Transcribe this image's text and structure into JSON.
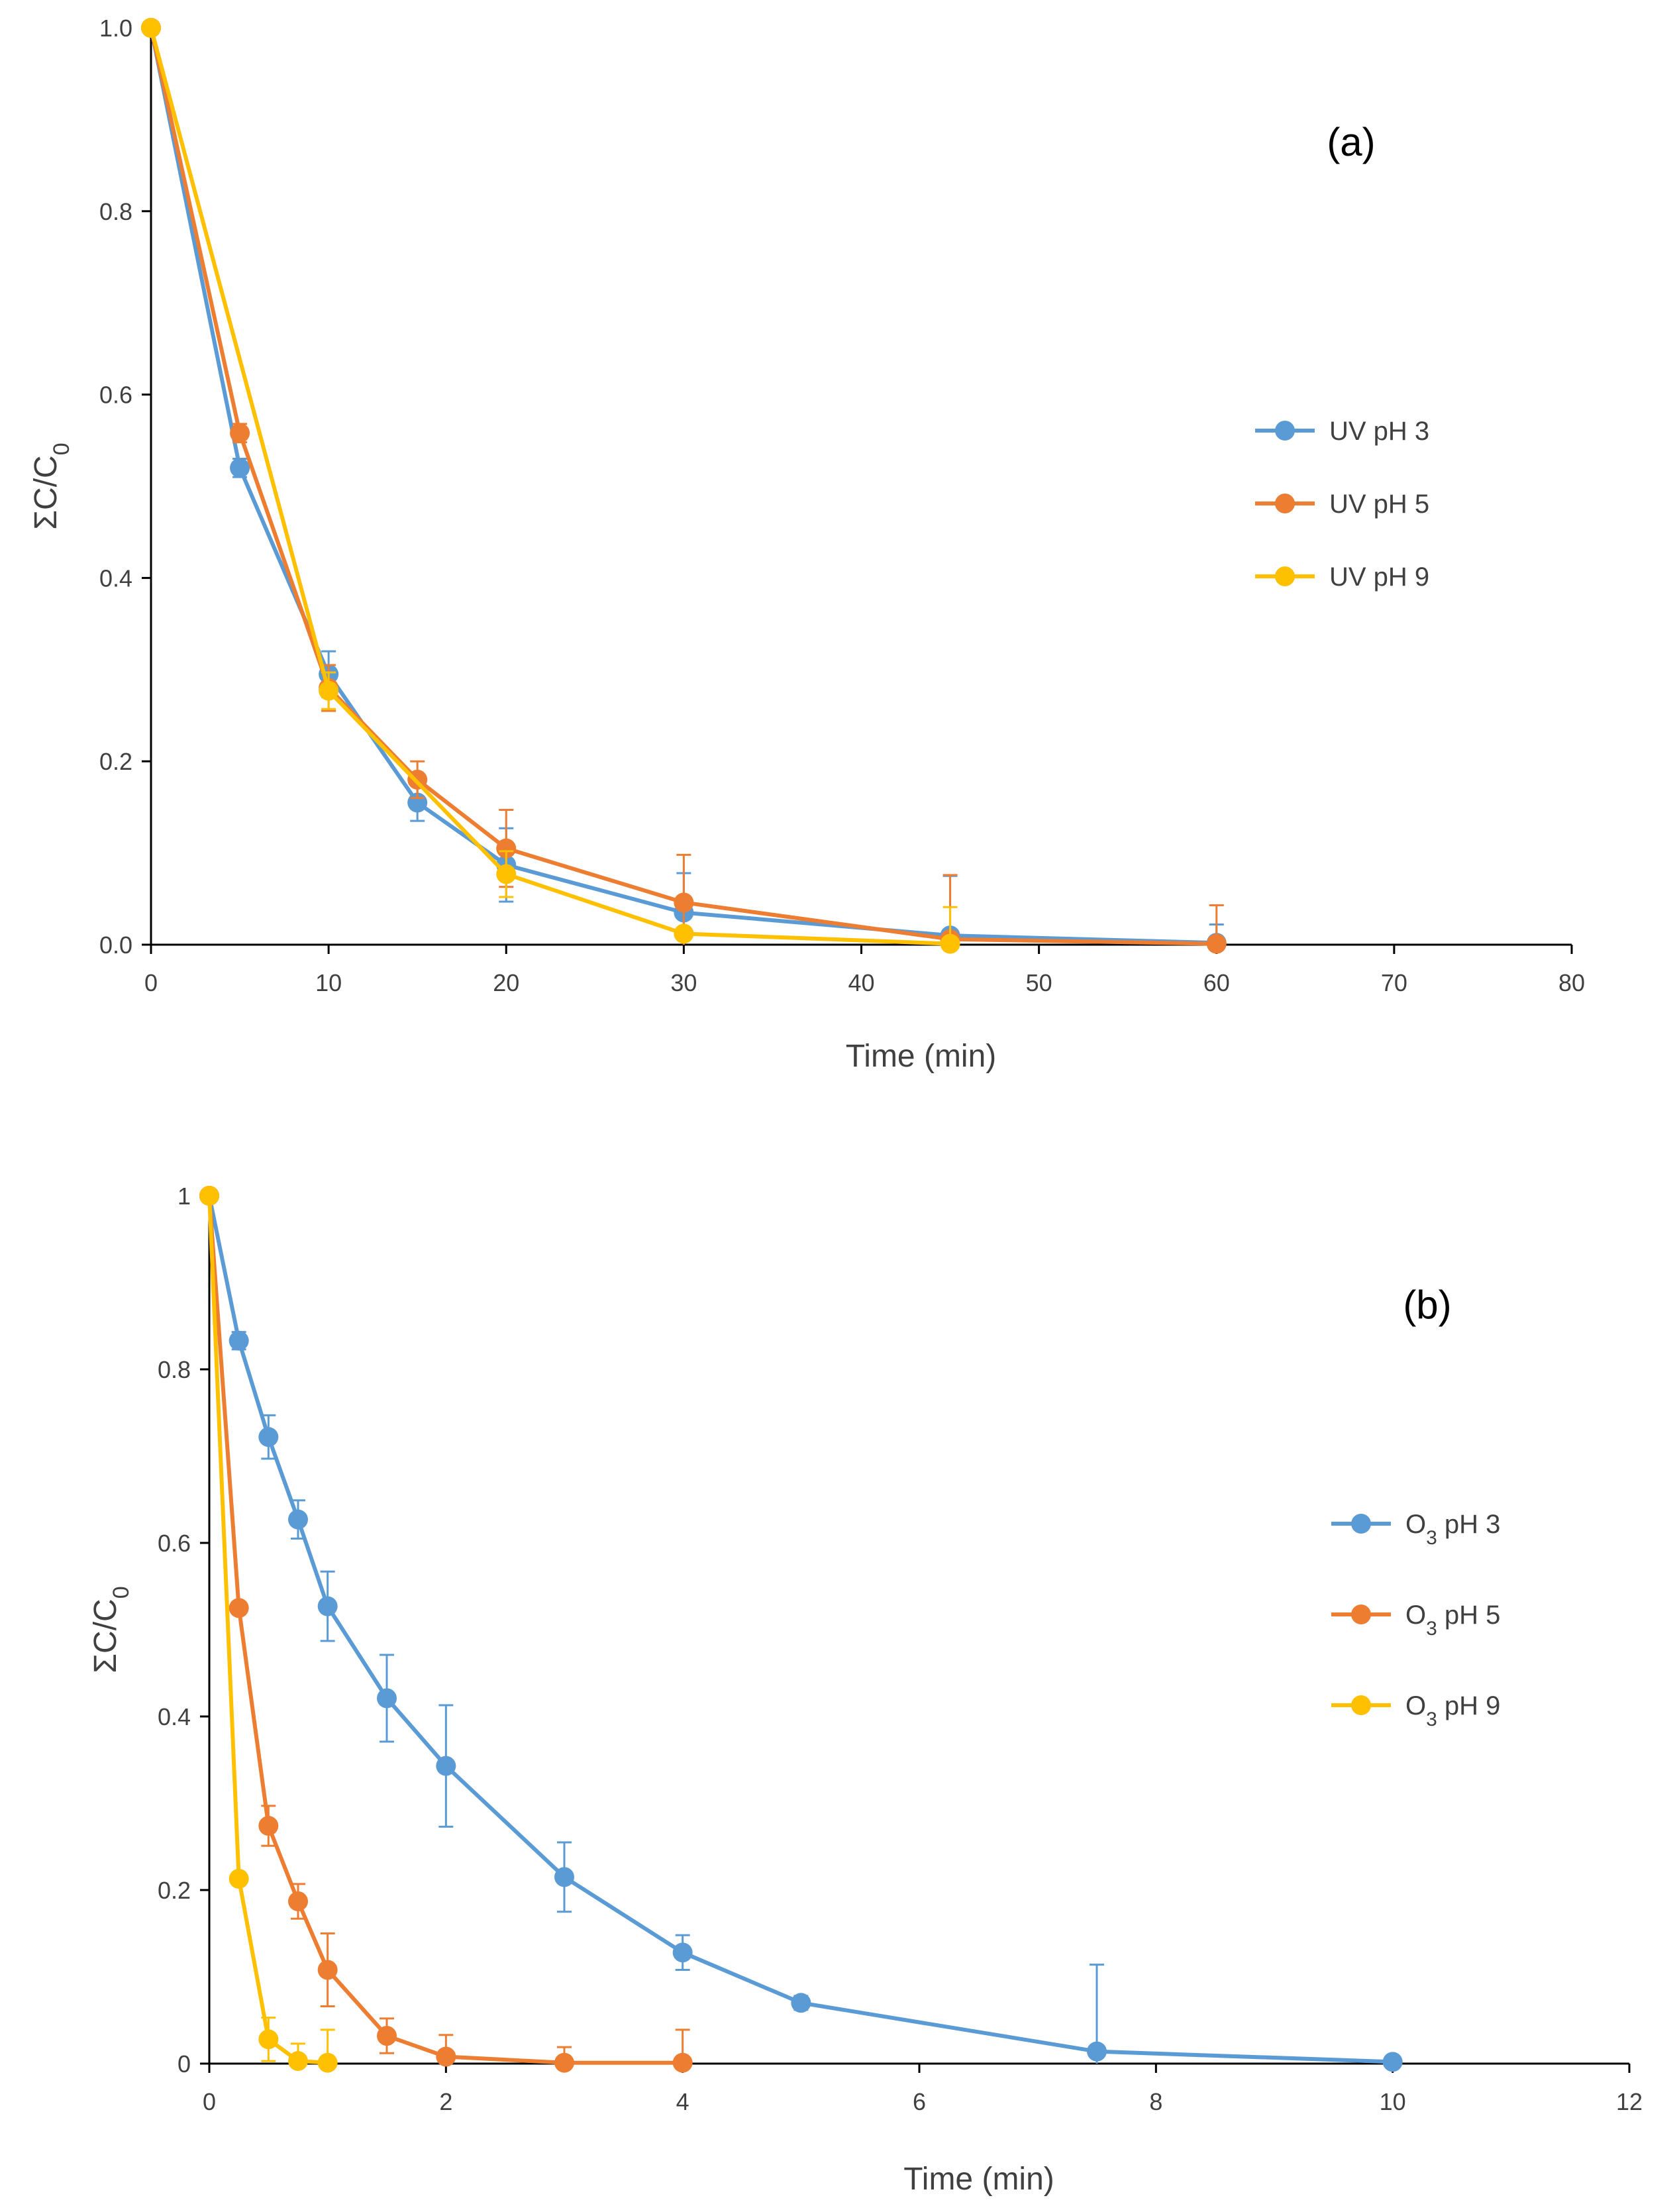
{
  "colors": {
    "pH3": "#5B9BD5",
    "pH5": "#ED7D31",
    "pH9": "#FFC000",
    "axis": "#000000",
    "text": "#404040"
  },
  "chart_data": [
    {
      "type": "line",
      "panel_label": "(a)",
      "xlabel": "Time (min)",
      "ylabel_main": "ΣC/C",
      "ylabel_sub": "0",
      "xlim": [
        0,
        80
      ],
      "ylim": [
        0,
        1
      ],
      "x_ticks": [
        0,
        10,
        20,
        30,
        40,
        50,
        60,
        70,
        80
      ],
      "x_tick_labels": [
        "0",
        "10",
        "20",
        "30",
        "40",
        "50",
        "60",
        "70",
        "80"
      ],
      "y_ticks": [
        0,
        0.2,
        0.4,
        0.6,
        0.8,
        1.0
      ],
      "y_tick_labels": [
        "0.0",
        "0.2",
        "0.4",
        "0.6",
        "0.8",
        "1.0"
      ],
      "grid": false,
      "legend_position": "right",
      "series": [
        {
          "name_main": "UV pH 3",
          "name_sub": "",
          "name_tail": "",
          "color_key": "pH3",
          "x": [
            0,
            5,
            10,
            15,
            20,
            30,
            45,
            60
          ],
          "y": [
            1.0,
            0.52,
            0.295,
            0.155,
            0.087,
            0.035,
            0.01,
            0.002
          ],
          "err": [
            0,
            0.01,
            0.025,
            0.02,
            0.04,
            0.043,
            0.065,
            0.02
          ]
        },
        {
          "name_main": "UV pH 5",
          "name_sub": "",
          "name_tail": "",
          "color_key": "pH5",
          "x": [
            0,
            5,
            10,
            15,
            20,
            30,
            45,
            60
          ],
          "y": [
            1.0,
            0.558,
            0.28,
            0.18,
            0.105,
            0.046,
            0.006,
            0.001
          ],
          "err": [
            0,
            0.01,
            0.025,
            0.02,
            0.042,
            0.052,
            0.07,
            0.042
          ]
        },
        {
          "name_main": "UV pH 9",
          "name_sub": "",
          "name_tail": "",
          "color_key": "pH9",
          "x": [
            0,
            10,
            20,
            30,
            45
          ],
          "y": [
            1.0,
            0.277,
            0.077,
            0.012,
            0.001
          ],
          "err": [
            0,
            0.02,
            0.025,
            0.0,
            0.04
          ]
        }
      ]
    },
    {
      "type": "line",
      "panel_label": "(b)",
      "xlabel": "Time (min)",
      "ylabel_main": "ΣC/C",
      "ylabel_sub": "0",
      "xlim": [
        0,
        12
      ],
      "ylim": [
        0,
        1
      ],
      "x_ticks": [
        0,
        2,
        4,
        6,
        8,
        10,
        12
      ],
      "x_tick_labels": [
        "0",
        "2",
        "4",
        "6",
        "8",
        "10",
        "12"
      ],
      "y_ticks": [
        0,
        0.2,
        0.4,
        0.6,
        0.8,
        1
      ],
      "y_tick_labels": [
        "0",
        "0.2",
        "0.4",
        "0.6",
        "0.8",
        "1"
      ],
      "grid": false,
      "legend_position": "right",
      "series": [
        {
          "name_main": "O",
          "name_sub": "3",
          "name_tail": " pH 3",
          "color_key": "pH3",
          "x": [
            0,
            0.25,
            0.5,
            0.75,
            1,
            1.5,
            2,
            3,
            4,
            5,
            7.5,
            10
          ],
          "y": [
            1,
            0.833,
            0.722,
            0.627,
            0.527,
            0.421,
            0.343,
            0.215,
            0.128,
            0.07,
            0.014,
            0.002
          ],
          "err": [
            0,
            0.01,
            0.025,
            0.022,
            0.04,
            0.05,
            0.07,
            0.04,
            0.02,
            0.008,
            0.1,
            0.0
          ]
        },
        {
          "name_main": "O",
          "name_sub": "3",
          "name_tail": " pH 5",
          "color_key": "pH5",
          "x": [
            0,
            0.25,
            0.5,
            0.75,
            1,
            1.5,
            2,
            3,
            4
          ],
          "y": [
            1,
            0.525,
            0.274,
            0.187,
            0.108,
            0.032,
            0.008,
            0.001,
            0.001
          ],
          "err": [
            0,
            0.0,
            0.023,
            0.02,
            0.042,
            0.02,
            0.025,
            0.018,
            0.038
          ]
        },
        {
          "name_main": "O",
          "name_sub": "3",
          "name_tail": " pH 9",
          "color_key": "pH9",
          "x": [
            0,
            0.25,
            0.5,
            0.75,
            1
          ],
          "y": [
            1,
            0.213,
            0.028,
            0.003,
            0.001
          ],
          "err": [
            0,
            0.0,
            0.025,
            0.02,
            0.038
          ]
        }
      ]
    }
  ]
}
